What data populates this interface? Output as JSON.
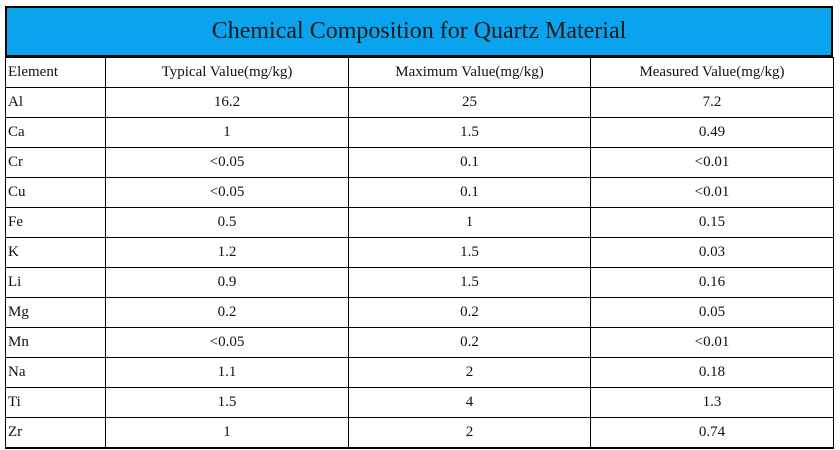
{
  "title": "Chemical Composition for Quartz Material",
  "headers": [
    "Element",
    "Typical Value(mg/kg)",
    "Maximum Value(mg/kg)",
    "Measured Value(mg/kg)"
  ],
  "rows": [
    [
      "Al",
      "16.2",
      "25",
      "7.2"
    ],
    [
      "Ca",
      "1",
      "1.5",
      "0.49"
    ],
    [
      "Cr",
      "<0.05",
      "0.1",
      "<0.01"
    ],
    [
      "Cu",
      "<0.05",
      "0.1",
      "<0.01"
    ],
    [
      "Fe",
      "0.5",
      "1",
      "0.15"
    ],
    [
      "K",
      "1.2",
      "1.5",
      "0.03"
    ],
    [
      "Li",
      "0.9",
      "1.5",
      "0.16"
    ],
    [
      "Mg",
      "0.2",
      "0.2",
      "0.05"
    ],
    [
      "Mn",
      "<0.05",
      "0.2",
      "<0.01"
    ],
    [
      "Na",
      "1.1",
      "2",
      "0.18"
    ],
    [
      "Ti",
      "1.5",
      "4",
      "1.3"
    ],
    [
      "Zr",
      "1",
      "2",
      "0.74"
    ]
  ],
  "colors": {
    "title_background": "#0aa3ee",
    "border": "#000000"
  }
}
